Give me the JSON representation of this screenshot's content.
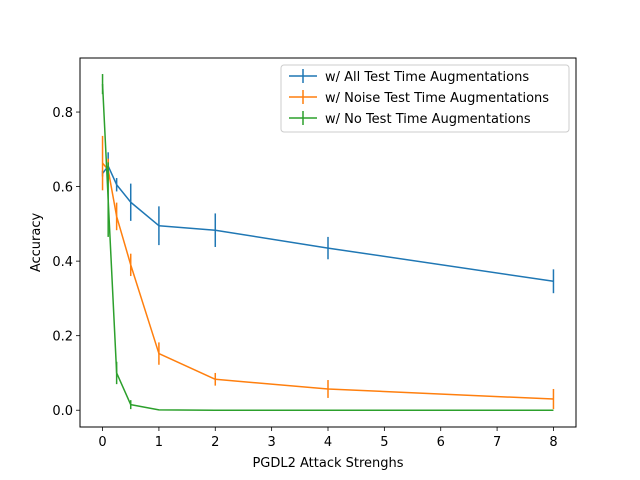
{
  "chart_data": {
    "type": "line",
    "xlabel": "PGDL2 Attack Strenghs",
    "ylabel": "Accuracy",
    "xlim": [
      -0.4,
      8.4
    ],
    "ylim": [
      -0.045,
      0.945
    ],
    "xticks": [
      0,
      1,
      2,
      3,
      4,
      5,
      6,
      7,
      8
    ],
    "yticks": [
      0.0,
      0.2,
      0.4,
      0.6,
      0.8
    ],
    "ytick_labels": [
      "0.0",
      "0.2",
      "0.4",
      "0.6",
      "0.8"
    ],
    "grid": false,
    "legend_position": "top-right",
    "x": [
      0,
      0.1,
      0.25,
      0.5,
      1,
      2,
      4,
      8
    ],
    "series": [
      {
        "name": "w/ All Test Time Augmentations",
        "color": "#1f77b4",
        "values": [
          0.635,
          0.655,
          0.605,
          0.558,
          0.495,
          0.483,
          0.435,
          0.346
        ],
        "errors": [
          0.008,
          0.037,
          0.018,
          0.05,
          0.052,
          0.045,
          0.03,
          0.032
        ]
      },
      {
        "name": "w/ Noise Test Time Augmentations",
        "color": "#ff7f0e",
        "values": [
          0.663,
          0.645,
          0.52,
          0.39,
          0.152,
          0.083,
          0.057,
          0.03
        ],
        "errors": [
          0.073,
          0.03,
          0.037,
          0.03,
          0.03,
          0.017,
          0.024,
          0.027
        ]
      },
      {
        "name": "w/ No Test Time Augmentations",
        "color": "#2ca02c",
        "values": [
          0.875,
          0.565,
          0.1,
          0.015,
          0.001,
          0.0,
          0.0,
          0.0
        ],
        "errors": [
          0.027,
          0.1,
          0.03,
          0.012,
          0.0,
          0.0,
          0.0,
          0.0
        ]
      }
    ]
  }
}
